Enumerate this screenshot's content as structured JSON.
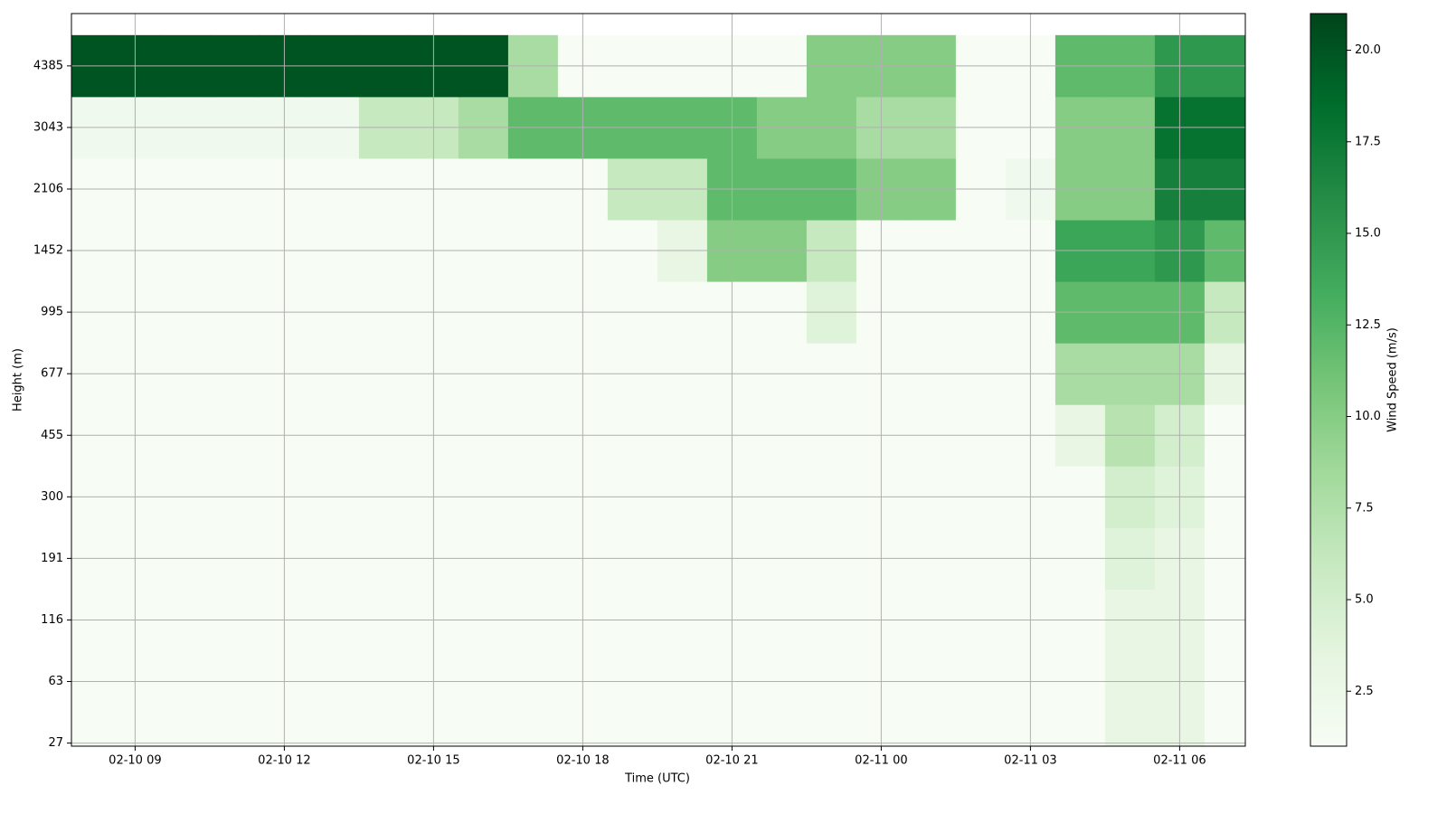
{
  "chart_data": {
    "type": "heatmap",
    "xlabel": "Time (UTC)",
    "ylabel": "Height (m)",
    "colorbar_label": "Wind Speed (m/s)",
    "x": [
      8,
      9,
      10,
      11,
      12,
      13,
      14,
      15,
      16,
      17,
      18,
      19,
      20,
      21,
      22,
      23,
      24,
      25,
      26,
      27,
      28,
      29,
      30,
      31
    ],
    "y": [
      0,
      1,
      2,
      3,
      4,
      5,
      6,
      7,
      8,
      9,
      10,
      11
    ],
    "z": [
      [
        1,
        1,
        1,
        1,
        1,
        1,
        1,
        1,
        1,
        1,
        1,
        1,
        1,
        1,
        1,
        1,
        1,
        1,
        1,
        1,
        1,
        3,
        3,
        1
      ],
      [
        1,
        1,
        1,
        1,
        1,
        1,
        1,
        1,
        1,
        1,
        1,
        1,
        1,
        1,
        1,
        1,
        1,
        1,
        1,
        1,
        1,
        3,
        3,
        1
      ],
      [
        1,
        1,
        1,
        1,
        1,
        1,
        1,
        1,
        1,
        1,
        1,
        1,
        1,
        1,
        1,
        1,
        1,
        1,
        1,
        1,
        1,
        3,
        3,
        1
      ],
      [
        1,
        1,
        1,
        1,
        1,
        1,
        1,
        1,
        1,
        1,
        1,
        1,
        1,
        1,
        1,
        1,
        1,
        1,
        1,
        1,
        1,
        4,
        3,
        1
      ],
      [
        1,
        1,
        1,
        1,
        1,
        1,
        1,
        1,
        1,
        1,
        1,
        1,
        1,
        1,
        1,
        1,
        1,
        1,
        1,
        1,
        1,
        5,
        4,
        1
      ],
      [
        1,
        1,
        1,
        1,
        1,
        1,
        1,
        1,
        1,
        1,
        1,
        1,
        1,
        1,
        1,
        1,
        1,
        1,
        1,
        1,
        3,
        7,
        5,
        1
      ],
      [
        1,
        1,
        1,
        1,
        1,
        1,
        1,
        1,
        1,
        1,
        1,
        1,
        1,
        1,
        1,
        1,
        1,
        1,
        1,
        1,
        8,
        8,
        8,
        3
      ],
      [
        1,
        1,
        1,
        1,
        1,
        1,
        1,
        1,
        1,
        1,
        1,
        1,
        1,
        1,
        1,
        4,
        1,
        1,
        1,
        1,
        12,
        12,
        12,
        6
      ],
      [
        1,
        1,
        1,
        1,
        1,
        1,
        1,
        1,
        1,
        1,
        1,
        1,
        3,
        10,
        10,
        6,
        1,
        1,
        1,
        1,
        14,
        14,
        15,
        12
      ],
      [
        1,
        1,
        1,
        1,
        1,
        1,
        1,
        1,
        1,
        1,
        1,
        6,
        6,
        12,
        12,
        12,
        10,
        10,
        1,
        2,
        10,
        10,
        17,
        17
      ],
      [
        2,
        2,
        2,
        2,
        2,
        2,
        6,
        6,
        8,
        12,
        12,
        12,
        12,
        12,
        10,
        10,
        8,
        8,
        1,
        1,
        10,
        10,
        18,
        18
      ],
      [
        20,
        20,
        20,
        20,
        20,
        20,
        20,
        20,
        20,
        8,
        1,
        1,
        1,
        1,
        1,
        10,
        10,
        10,
        1,
        1,
        12,
        12,
        15,
        15
      ]
    ],
    "xlim": [
      7.72,
      31.32
    ],
    "xticks": [
      {
        "value": 9,
        "label": "02-10 09"
      },
      {
        "value": 12,
        "label": "02-10 12"
      },
      {
        "value": 15,
        "label": "02-10 15"
      },
      {
        "value": 18,
        "label": "02-10 18"
      },
      {
        "value": 21,
        "label": "02-10 21"
      },
      {
        "value": 24,
        "label": "02-11 00"
      },
      {
        "value": 27,
        "label": "02-11 03"
      },
      {
        "value": 30,
        "label": "02-11 06"
      }
    ],
    "ylim": [
      -0.05,
      11.85
    ],
    "yticks": [
      {
        "value": 0,
        "label": "27"
      },
      {
        "value": 1,
        "label": "63"
      },
      {
        "value": 2,
        "label": "116"
      },
      {
        "value": 3,
        "label": "191"
      },
      {
        "value": 4,
        "label": "300"
      },
      {
        "value": 5,
        "label": "455"
      },
      {
        "value": 6,
        "label": "677"
      },
      {
        "value": 7,
        "label": "995"
      },
      {
        "value": 8,
        "label": "1452"
      },
      {
        "value": 9,
        "label": "2106"
      },
      {
        "value": 10,
        "label": "3043"
      },
      {
        "value": 11,
        "label": "4385"
      }
    ],
    "clim": [
      1,
      21
    ],
    "cticks": [
      2.5,
      {
        "value": 5,
        "label": "5.0"
      },
      7.5,
      {
        "value": 10,
        "label": "10.0"
      },
      12.5,
      {
        "value": 15,
        "label": "15.0"
      },
      17.5,
      {
        "value": 20,
        "label": "20.0"
      }
    ],
    "colormap": [
      "#f7fcf5",
      "#e5f5e0",
      "#c7e9c0",
      "#a1d99b",
      "#74c476",
      "#41ab5d",
      "#238b45",
      "#006d2c",
      "#00441b"
    ],
    "grid": true
  }
}
